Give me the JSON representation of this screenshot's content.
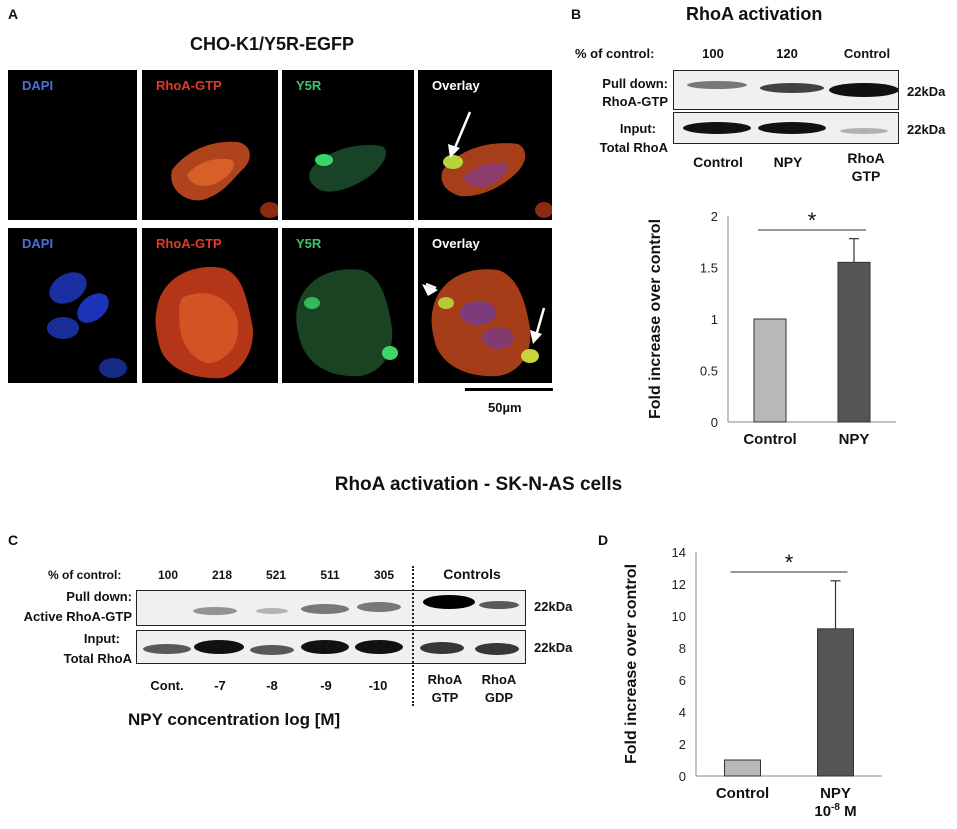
{
  "panelA": {
    "letter": "A",
    "title": "CHO-K1/Y5R-EGFP",
    "channels": [
      "DAPI",
      "RhoA-GTP",
      "Y5R",
      "Overlay"
    ],
    "scale_bar": "50µm"
  },
  "panelB": {
    "letter": "B",
    "title": "RhoA activation",
    "pct_label": "% of control:",
    "pct_values": [
      "100",
      "120",
      "Control"
    ],
    "row1_label_a": "Pull down:",
    "row1_label_b": "RhoA-GTP",
    "row2_label_a": "Input:",
    "row2_label_b": "Total RhoA",
    "kda": "22kDa",
    "lanes": [
      "Control",
      "NPY"
    ],
    "lane3_a": "RhoA",
    "lane3_b": "GTP"
  },
  "section_title": "RhoA activation - SK-N-AS cells",
  "panelC": {
    "letter": "C",
    "pct_label": "% of control:",
    "pct_values": [
      "100",
      "218",
      "521",
      "511",
      "305"
    ],
    "controls_label": "Controls",
    "row1_label_a": "Pull down:",
    "row1_label_b": "Active RhoA-GTP",
    "row2_label_a": "Input:",
    "row2_label_b": "Total RhoA",
    "kda": "22kDa",
    "lanes": [
      "Cont.",
      "-7",
      "-8",
      "-9",
      "-10"
    ],
    "ctrl_lane1_a": "RhoA",
    "ctrl_lane1_b": "GTP",
    "ctrl_lane2_a": "RhoA",
    "ctrl_lane2_b": "GDP",
    "xlabel": "NPY concentration log [M]"
  },
  "panelD": {
    "letter": "D"
  },
  "chart_data": [
    {
      "type": "bar",
      "panel": "B",
      "categories": [
        "Control",
        "NPY"
      ],
      "values": [
        1.0,
        1.55
      ],
      "errors": [
        0,
        0.23
      ],
      "ylabel": "Fold increase over control",
      "ylim": [
        0,
        2
      ],
      "yticks": [
        "0",
        "0.5",
        "1",
        "1.5",
        "2"
      ],
      "significance": "*",
      "colors": [
        "#b8b8b8",
        "#555555"
      ]
    },
    {
      "type": "bar",
      "panel": "D",
      "categories": [
        "Control",
        "NPY"
      ],
      "category_sub": [
        "",
        "10"
      ],
      "category_sup": [
        "",
        "-8"
      ],
      "category_unit": [
        "",
        " M"
      ],
      "values": [
        1.0,
        9.2
      ],
      "errors": [
        0,
        3.0
      ],
      "ylabel": "Fold increase over control",
      "ylim": [
        0,
        14
      ],
      "yticks": [
        "0",
        "2",
        "4",
        "6",
        "8",
        "10",
        "12",
        "14"
      ],
      "significance": "*",
      "colors": [
        "#b8b8b8",
        "#555555"
      ]
    }
  ]
}
